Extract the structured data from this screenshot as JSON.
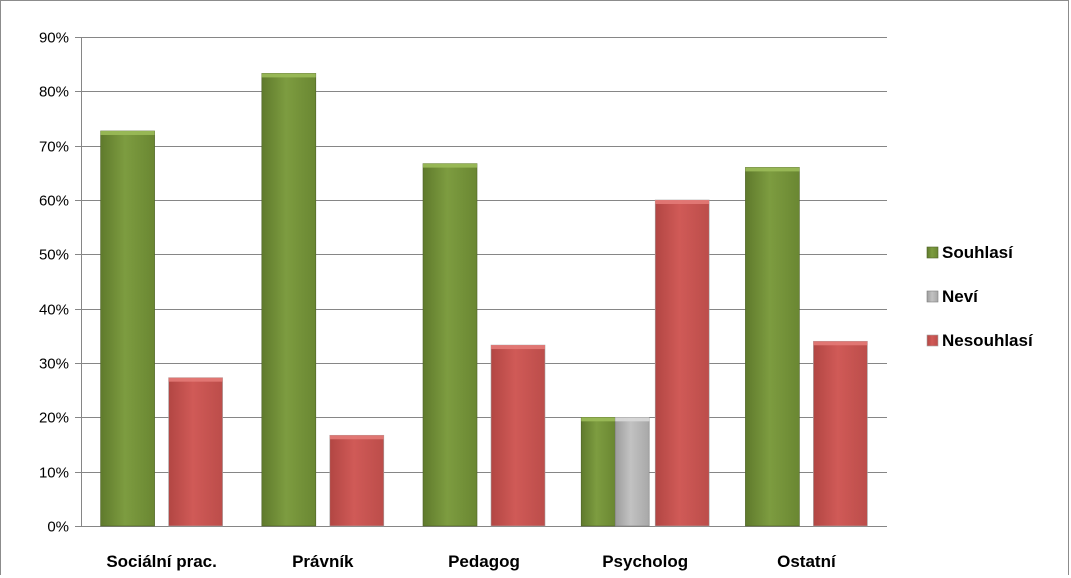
{
  "chart_data": {
    "type": "bar",
    "categories": [
      "Sociální prac.",
      "Právník",
      "Pedagog",
      "Psycholog",
      "Ostatní"
    ],
    "series": [
      {
        "name": "Souhlasí",
        "values": [
          72.7,
          83.3,
          66.7,
          20.0,
          66.0
        ],
        "color": "#77933c"
      },
      {
        "name": "Neví",
        "values": [
          0,
          0,
          0,
          20.0,
          0
        ],
        "color": "#b3b3b3"
      },
      {
        "name": "Nesouhlasí",
        "values": [
          27.3,
          16.7,
          33.3,
          60.0,
          34.0
        ],
        "color": "#c0504d"
      }
    ],
    "ylim": [
      0,
      90
    ],
    "ytick_step": 10,
    "ytick_labels": [
      "0%",
      "10%",
      "20%",
      "30%",
      "40%",
      "50%",
      "60%",
      "70%",
      "80%",
      "90%"
    ],
    "grid": true,
    "legend": "right"
  }
}
